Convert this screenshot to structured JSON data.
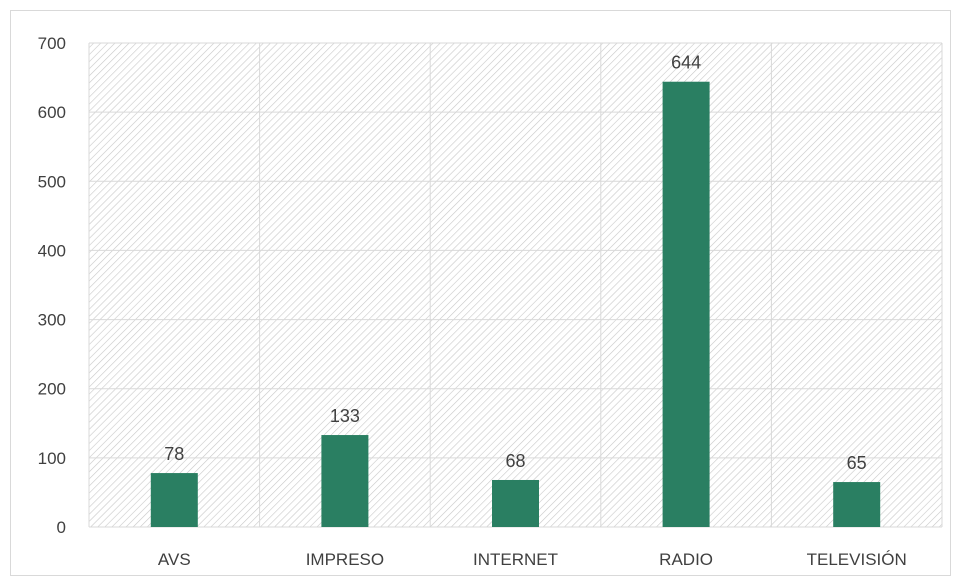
{
  "chart_data": {
    "type": "bar",
    "title": "",
    "xlabel": "",
    "ylabel": "",
    "categories": [
      "AVS",
      "IMPRESO",
      "INTERNET",
      "RADIO",
      "TELEVISIÓN"
    ],
    "values": [
      78,
      133,
      68,
      644,
      65
    ],
    "ylim": [
      0,
      700
    ],
    "yticks": [
      0,
      100,
      200,
      300,
      400,
      500,
      600,
      700
    ],
    "grid": true,
    "plot_area_pattern": "diagonal-hatch",
    "legend": "none",
    "colors": {
      "bar": "#2a7f62",
      "grid": "#d9d9d9",
      "hatch": "#c8c8c8",
      "text": "#404040"
    }
  }
}
